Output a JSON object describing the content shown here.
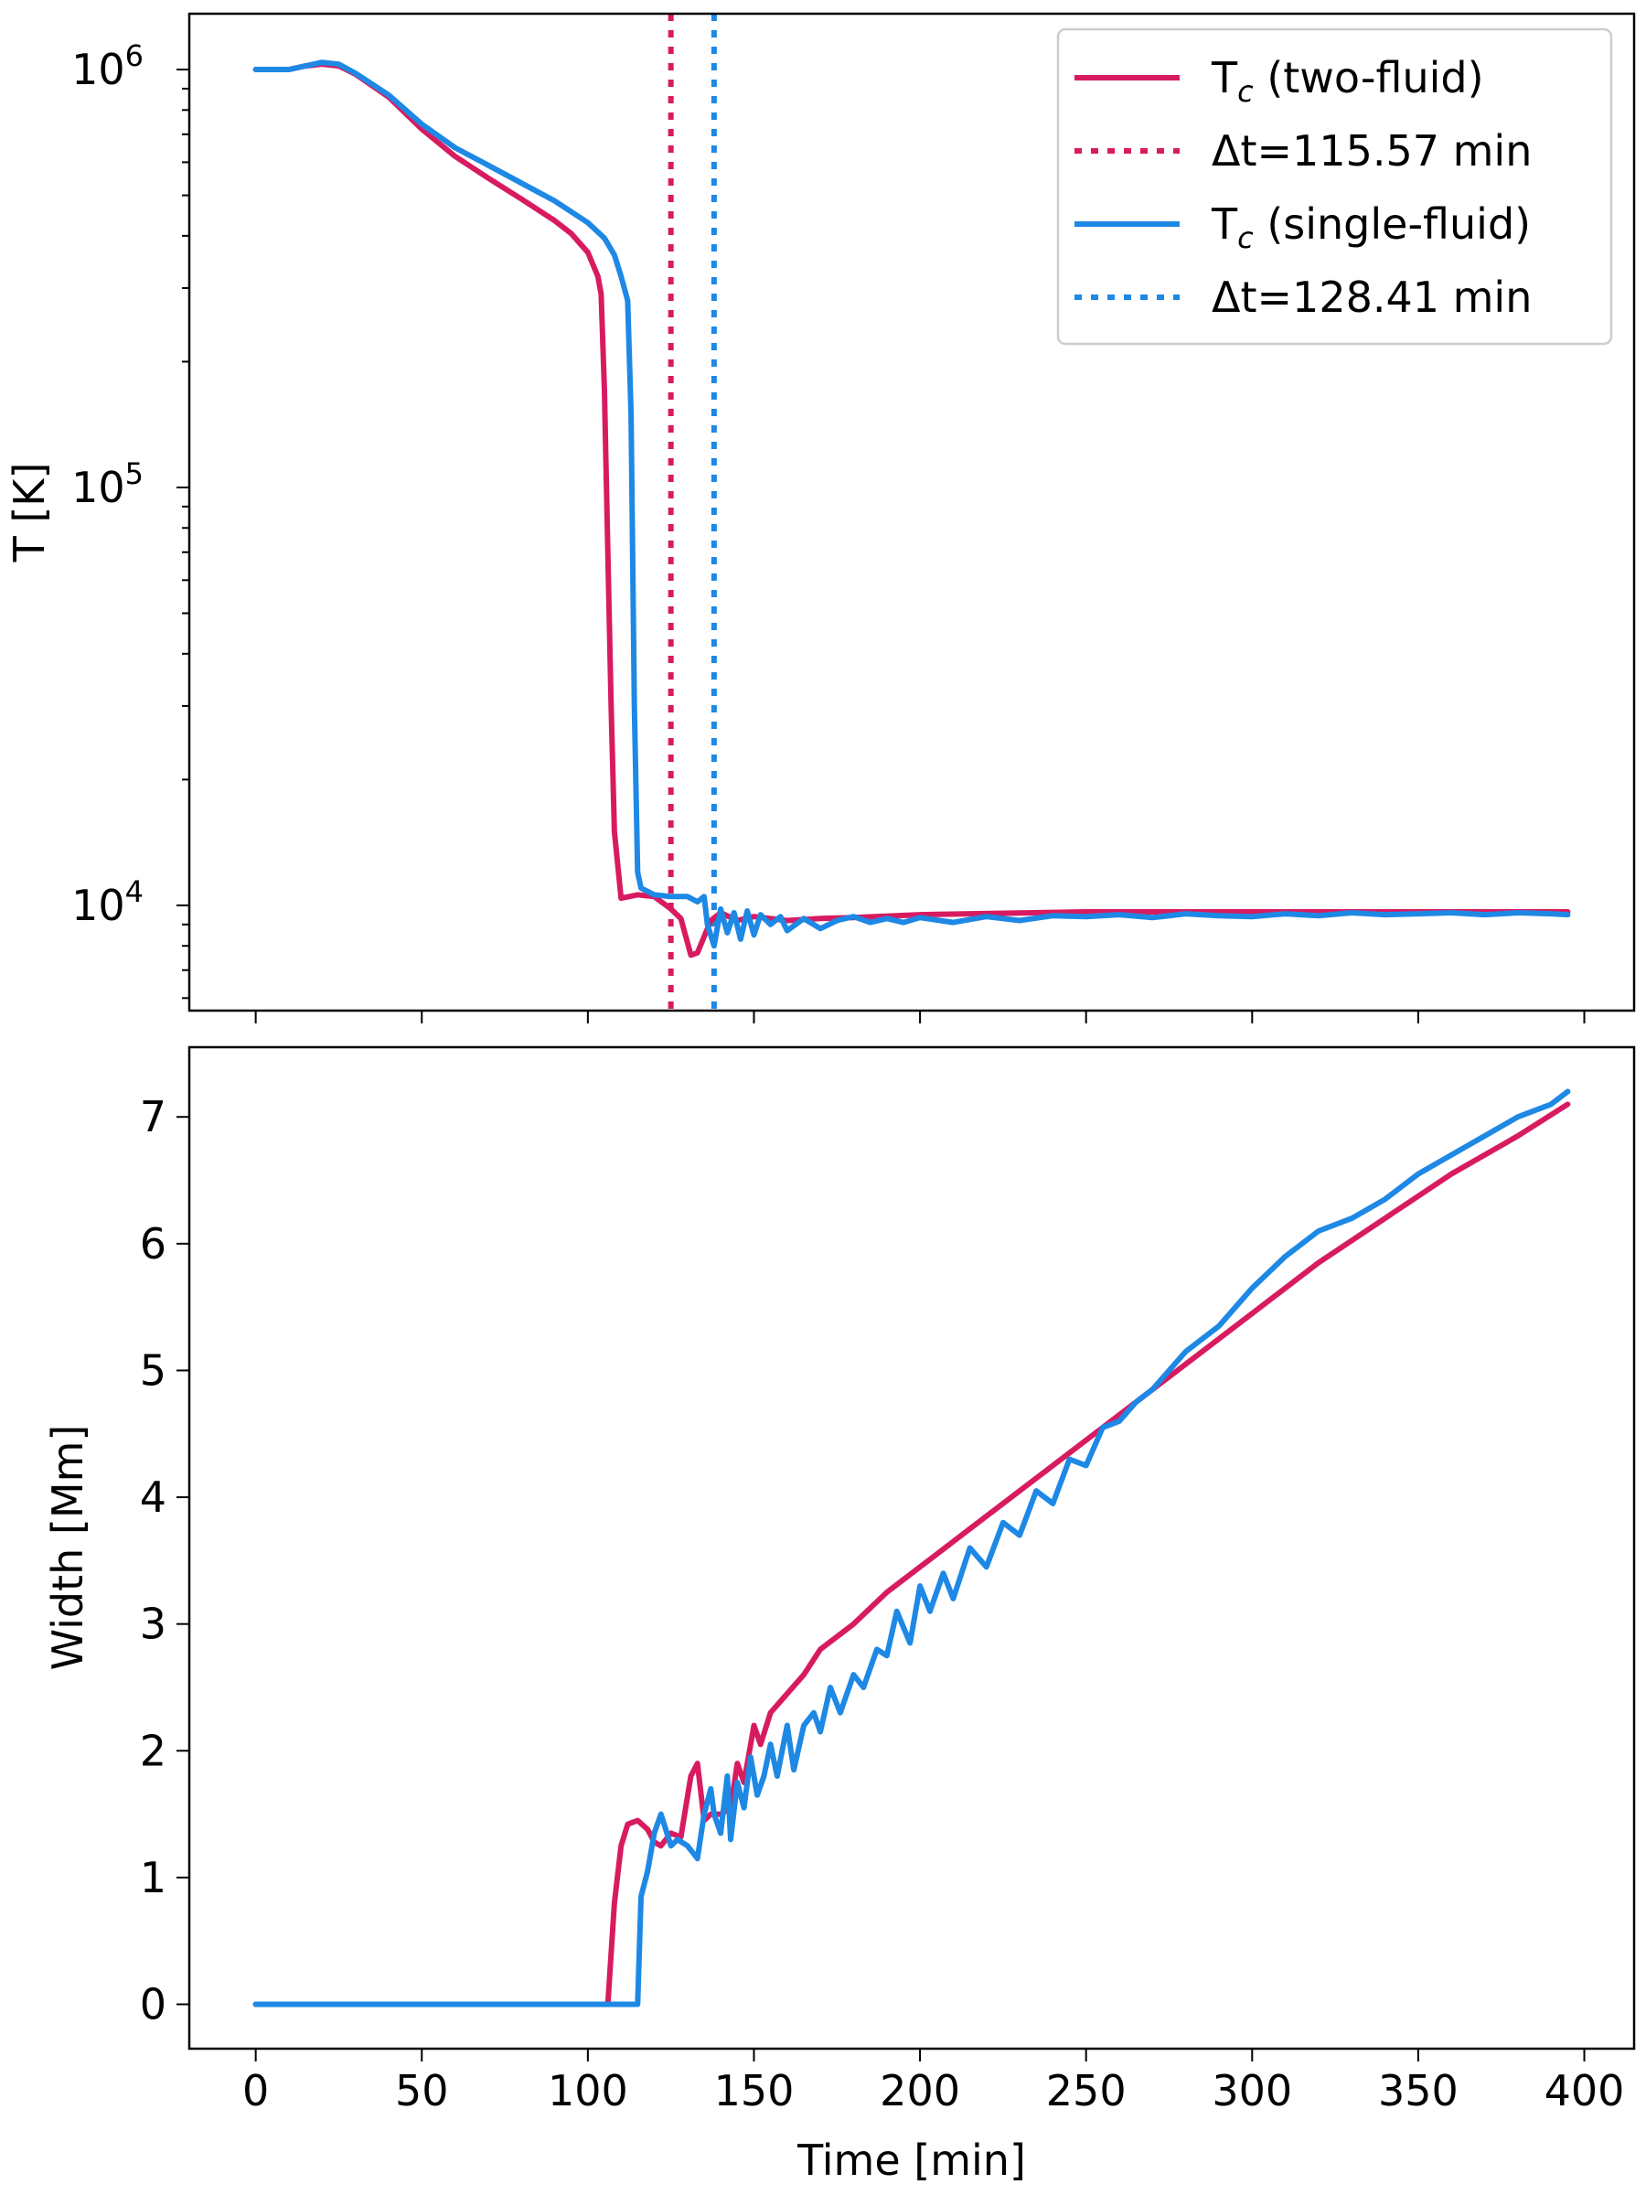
{
  "chart_data": [
    {
      "type": "line",
      "panel": "top",
      "yscale": "log",
      "ylabel": "T [K]",
      "xlabel": "",
      "xlim": [
        -20,
        415
      ],
      "ylim": [
        5600,
        1360000
      ],
      "y_ticks": [
        {
          "value": 1000000,
          "base": "10",
          "exp": "6"
        },
        {
          "value": 100000,
          "base": "10",
          "exp": "5"
        },
        {
          "value": 10000,
          "base": "10",
          "exp": "4"
        }
      ],
      "x_ticks": [
        0,
        50,
        100,
        150,
        200,
        250,
        300,
        350,
        400
      ],
      "grid": false,
      "legend_position": "top-right",
      "legend": [
        {
          "style": "solid",
          "color": "#d81b60",
          "name_main": "T",
          "name_sub": "c",
          "name_rest": " (two-fluid)"
        },
        {
          "style": "dotted",
          "color": "#d81b60",
          "label": "Δt=115.57 min"
        },
        {
          "style": "solid",
          "color": "#1e88e5",
          "name_main": "T",
          "name_sub": "c",
          "name_rest": " (single-fluid)"
        },
        {
          "style": "dotted",
          "color": "#1e88e5",
          "label": "Δt=128.41 min"
        }
      ],
      "vlines": [
        {
          "x": 125,
          "color": "#d81b60",
          "label": "Δt=115.57 min"
        },
        {
          "x": 138,
          "color": "#1e88e5",
          "label": "Δt=128.41 min"
        }
      ],
      "series": [
        {
          "name": "Tc (two-fluid)",
          "color": "#d81b60",
          "x": [
            0,
            5,
            10,
            15,
            20,
            25,
            30,
            40,
            50,
            60,
            70,
            80,
            90,
            95,
            100,
            103,
            104,
            105,
            106,
            107,
            108,
            110,
            115,
            120,
            125,
            128,
            131,
            133,
            137,
            140,
            145,
            150,
            160,
            170,
            180,
            200,
            250,
            300,
            350,
            395
          ],
          "y": [
            1000000,
            1000000,
            1000000,
            1020000,
            1030000,
            1020000,
            975000,
            860000,
            720000,
            620000,
            550000,
            490000,
            435000,
            405000,
            365000,
            320000,
            290000,
            170000,
            70000,
            30000,
            15000,
            10400,
            10600,
            10500,
            9800,
            9300,
            7600,
            7700,
            9200,
            9600,
            9200,
            9400,
            9200,
            9300,
            9350,
            9500,
            9650,
            9650,
            9650,
            9650
          ]
        },
        {
          "name": "Tc (single-fluid)",
          "color": "#1e88e5",
          "x": [
            0,
            5,
            10,
            15,
            20,
            25,
            30,
            40,
            50,
            60,
            70,
            80,
            90,
            100,
            105,
            108,
            110,
            112,
            113,
            114,
            115,
            116,
            118,
            120,
            125,
            130,
            133,
            135,
            136,
            138,
            140,
            142,
            144,
            146,
            148,
            150,
            152,
            155,
            158,
            160,
            165,
            170,
            175,
            180,
            185,
            190,
            195,
            200,
            210,
            220,
            230,
            240,
            250,
            260,
            270,
            280,
            290,
            300,
            310,
            320,
            330,
            340,
            350,
            360,
            370,
            380,
            390,
            395
          ],
          "y": [
            1000000,
            1000000,
            1000000,
            1020000,
            1040000,
            1030000,
            980000,
            870000,
            740000,
            650000,
            590000,
            535000,
            485000,
            430000,
            395000,
            360000,
            320000,
            280000,
            150000,
            30000,
            12000,
            11000,
            10800,
            10600,
            10500,
            10500,
            10200,
            10500,
            9000,
            8000,
            9800,
            8600,
            9600,
            8300,
            9700,
            8500,
            9500,
            9000,
            9400,
            8700,
            9300,
            8800,
            9200,
            9400,
            9100,
            9300,
            9100,
            9350,
            9100,
            9400,
            9200,
            9450,
            9400,
            9500,
            9350,
            9550,
            9450,
            9400,
            9550,
            9450,
            9600,
            9500,
            9550,
            9600,
            9500,
            9600,
            9550,
            9500
          ]
        }
      ]
    },
    {
      "type": "line",
      "panel": "bottom",
      "yscale": "linear",
      "ylabel": "Width [Mm]",
      "xlabel": "Time [min]",
      "xlim": [
        -20,
        415
      ],
      "ylim": [
        -0.35,
        7.55
      ],
      "y_ticks": [
        0,
        1,
        2,
        3,
        4,
        5,
        6,
        7
      ],
      "x_ticks": [
        0,
        50,
        100,
        150,
        200,
        250,
        300,
        350,
        400
      ],
      "grid": false,
      "series": [
        {
          "name": "two-fluid",
          "color": "#d81b60",
          "x": [
            0,
            50,
            100,
            106,
            108,
            110,
            112,
            115,
            118,
            120,
            122,
            125,
            128,
            131,
            133,
            135,
            137,
            140,
            143,
            145,
            147,
            150,
            152,
            155,
            160,
            165,
            170,
            180,
            190,
            200,
            220,
            240,
            260,
            280,
            300,
            320,
            340,
            360,
            380,
            395
          ],
          "y": [
            0,
            0,
            0,
            0,
            0.8,
            1.25,
            1.42,
            1.45,
            1.38,
            1.28,
            1.25,
            1.35,
            1.32,
            1.8,
            1.9,
            1.45,
            1.5,
            1.5,
            1.55,
            1.9,
            1.75,
            2.2,
            2.05,
            2.3,
            2.45,
            2.6,
            2.8,
            3.0,
            3.25,
            3.45,
            3.85,
            4.25,
            4.65,
            5.05,
            5.45,
            5.85,
            6.2,
            6.55,
            6.85,
            7.1
          ]
        },
        {
          "name": "single-fluid",
          "color": "#1e88e5",
          "x": [
            0,
            50,
            100,
            115,
            116,
            118,
            120,
            122,
            125,
            127,
            130,
            133,
            135,
            137,
            138,
            140,
            142,
            143,
            145,
            147,
            149,
            151,
            153,
            155,
            157,
            160,
            162,
            165,
            168,
            170,
            173,
            176,
            180,
            183,
            187,
            190,
            193,
            197,
            200,
            203,
            207,
            210,
            215,
            220,
            225,
            230,
            235,
            240,
            245,
            250,
            255,
            260,
            265,
            270,
            280,
            290,
            300,
            310,
            320,
            330,
            340,
            350,
            360,
            370,
            380,
            390,
            395
          ],
          "y": [
            0,
            0,
            0,
            0,
            0.85,
            1.05,
            1.35,
            1.5,
            1.25,
            1.3,
            1.25,
            1.15,
            1.5,
            1.7,
            1.5,
            1.35,
            1.8,
            1.3,
            1.75,
            1.55,
            1.95,
            1.65,
            1.8,
            2.05,
            1.8,
            2.2,
            1.85,
            2.2,
            2.3,
            2.15,
            2.5,
            2.3,
            2.6,
            2.5,
            2.8,
            2.75,
            3.1,
            2.85,
            3.3,
            3.1,
            3.4,
            3.2,
            3.6,
            3.45,
            3.8,
            3.7,
            4.05,
            3.95,
            4.3,
            4.25,
            4.55,
            4.6,
            4.75,
            4.85,
            5.15,
            5.35,
            5.65,
            5.9,
            6.1,
            6.2,
            6.35,
            6.55,
            6.7,
            6.85,
            7.0,
            7.1,
            7.2
          ]
        }
      ]
    }
  ]
}
